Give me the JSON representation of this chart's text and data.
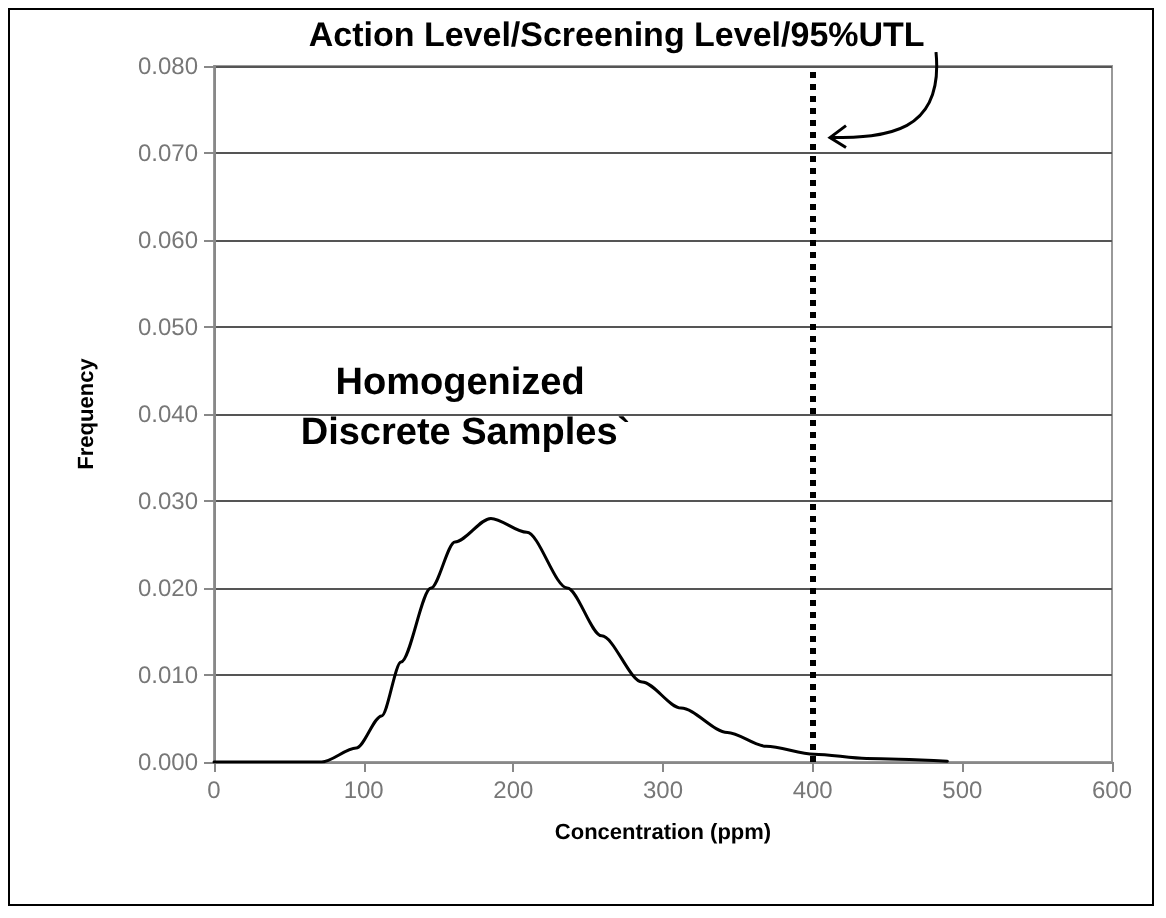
{
  "chart_data": {
    "type": "line",
    "xlabel": "Concentration (ppm)",
    "ylabel": "Frequency",
    "x": [
      0,
      72,
      95,
      112,
      125,
      145,
      161,
      185,
      209,
      236,
      259,
      286,
      312,
      343,
      369,
      401,
      436,
      490
    ],
    "series": [
      {
        "color": "#000000",
        "values": [
          0,
          0,
          0.0016,
          0.0053,
          0.0115,
          0.02,
          0.0253,
          0.028,
          0.0264,
          0.02,
          0.0145,
          0.0092,
          0.0062,
          0.0034,
          0.0018,
          0.0009,
          0.0004,
          0.0001
        ]
      }
    ],
    "xlim": [
      0,
      600
    ],
    "xticks": [
      0,
      100,
      200,
      300,
      400,
      500,
      600
    ],
    "ylim": [
      0,
      0.08
    ],
    "yticks": [
      {
        "value": 0,
        "label": "0.000"
      },
      {
        "value": 0.01,
        "label": "0.010"
      },
      {
        "value": 0.02,
        "label": "0.020"
      },
      {
        "value": 0.03,
        "label": "0.030"
      },
      {
        "value": 0.04,
        "label": "0.040"
      },
      {
        "value": 0.05,
        "label": "0.050"
      },
      {
        "value": 0.06,
        "label": "0.060"
      },
      {
        "value": 0.07,
        "label": "0.070"
      },
      {
        "value": 0.08,
        "label": "0.080"
      }
    ],
    "ref_lines": [
      {
        "axis": "x",
        "value": 400,
        "label": "Action Level/Screening Level/95%UTL",
        "color": "#000000",
        "line_style": "dotted"
      }
    ],
    "annotations": [
      "Homogenized Discrete Samples`"
    ],
    "grid": "y",
    "marker": "none",
    "line_style": "solid"
  }
}
